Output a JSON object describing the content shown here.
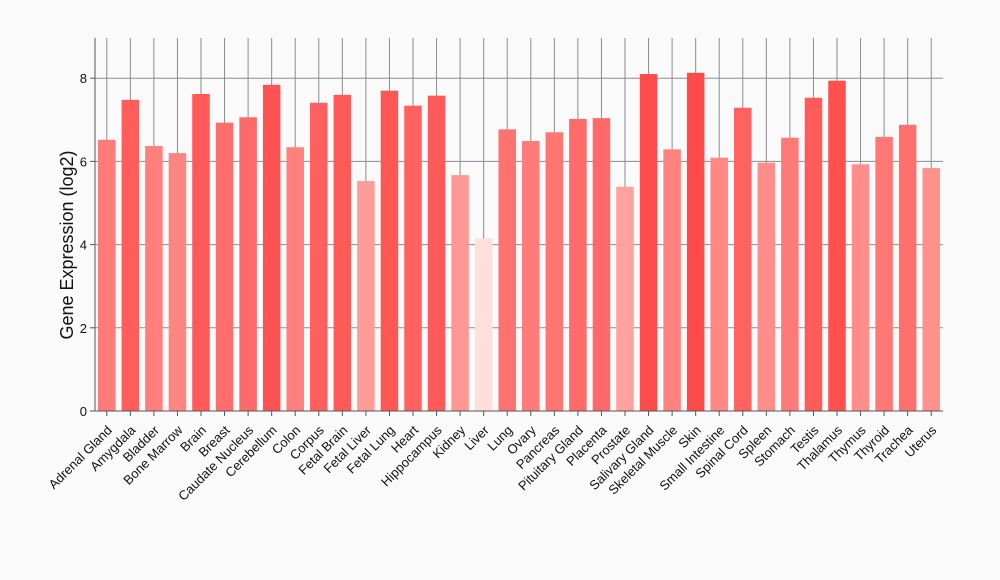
{
  "chart_data": {
    "type": "bar",
    "title": "",
    "xlabel": "",
    "ylabel": "Gene Expression (log2)",
    "ylim": [
      0,
      8.5
    ],
    "yticks": [
      0,
      2,
      4,
      6,
      8
    ],
    "grid": "horizontal and vertical",
    "categories": [
      "Adrenal Gland",
      "Amygdala",
      "Bladder",
      "Bone Marrow",
      "Brain",
      "Breast",
      "Caudate Nucleus",
      "Cerebellum",
      "Colon",
      "Corpus",
      "Fetal Brain",
      "Fetal Liver",
      "Fetal Lung",
      "Heart",
      "Hippocampus",
      "Kidney",
      "Liver",
      "Lung",
      "Ovary",
      "Pancreas",
      "Pituitary Gland",
      "Placenta",
      "Prostate",
      "Salivary Gland",
      "Skeletal Muscle",
      "Skin",
      "Small Intestine",
      "Spinal Cord",
      "Spleen",
      "Stomach",
      "Testis",
      "Thalamus",
      "Thymus",
      "Thyroid",
      "Trachea",
      "Uterus"
    ],
    "values": [
      6.52,
      7.48,
      6.37,
      6.2,
      7.62,
      6.93,
      7.06,
      7.84,
      6.34,
      7.41,
      7.6,
      5.53,
      7.7,
      7.34,
      7.58,
      5.67,
      4.15,
      6.77,
      6.49,
      6.7,
      7.02,
      7.04,
      5.39,
      8.1,
      6.29,
      8.13,
      6.09,
      7.29,
      5.97,
      6.57,
      7.53,
      7.94,
      5.93,
      6.59,
      6.88,
      5.84
    ],
    "colors": {
      "gradient_low": "#ffe0d8",
      "gradient_high": "#ff4a4a",
      "grid": "#8c8c8c",
      "axis": "#555555",
      "background": "#fafafa"
    }
  }
}
